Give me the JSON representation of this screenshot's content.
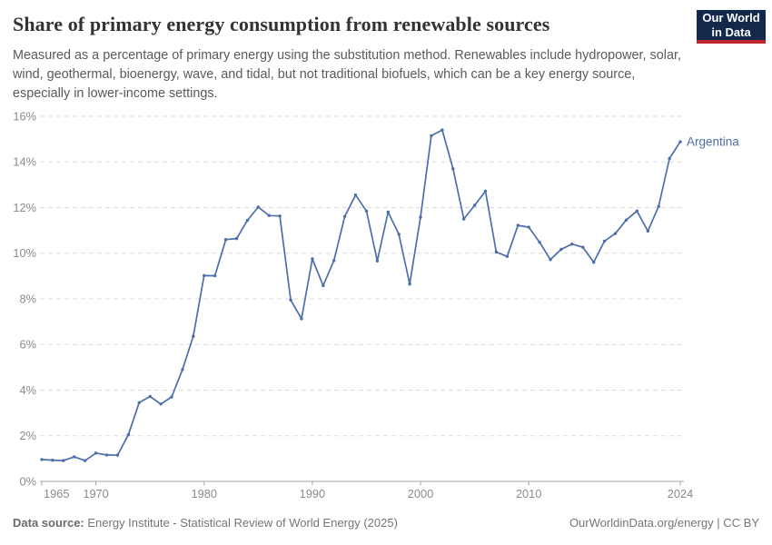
{
  "header": {
    "title": "Share of primary energy consumption from renewable sources",
    "subtitle": "Measured as a percentage of primary energy using the substitution method. Renewables include hydropower, solar, wind, geothermal, bioenergy, wave, and tidal, but not traditional biofuels, which can be a key energy source, especially in lower-income settings.",
    "logo": {
      "line1": "Our World",
      "line2": "in Data",
      "bg_color": "#12294c",
      "accent_color": "#c0282e"
    }
  },
  "chart_data": {
    "type": "line",
    "title": "Share of primary energy consumption from renewable sources",
    "xlabel": "",
    "ylabel": "",
    "xlim": [
      1965,
      2024
    ],
    "ylim": [
      0,
      16
    ],
    "grid": "horizontal-dashed",
    "legend_position": "end-of-line-label",
    "x_ticks": [
      1965,
      1970,
      1980,
      1990,
      2000,
      2010,
      2024
    ],
    "y_ticks": [
      "0%",
      "2%",
      "4%",
      "6%",
      "8%",
      "10%",
      "12%",
      "14%",
      "16%"
    ],
    "series": [
      {
        "name": "Argentina",
        "color": "#4c6ea9",
        "x": [
          1965,
          1966,
          1967,
          1968,
          1969,
          1970,
          1971,
          1972,
          1973,
          1974,
          1975,
          1976,
          1977,
          1978,
          1979,
          1980,
          1981,
          1982,
          1983,
          1984,
          1985,
          1986,
          1987,
          1988,
          1989,
          1990,
          1991,
          1992,
          1993,
          1994,
          1995,
          1996,
          1997,
          1998,
          1999,
          2000,
          2001,
          2002,
          2003,
          2004,
          2005,
          2006,
          2007,
          2008,
          2009,
          2010,
          2011,
          2012,
          2013,
          2014,
          2015,
          2016,
          2017,
          2018,
          2019,
          2020,
          2021,
          2022,
          2023,
          2024
        ],
        "values": [
          0.96,
          0.93,
          0.91,
          1.08,
          0.91,
          1.24,
          1.16,
          1.15,
          2.04,
          3.45,
          3.72,
          3.39,
          3.7,
          4.9,
          6.36,
          9.02,
          9.01,
          10.6,
          10.64,
          11.44,
          12.02,
          11.65,
          11.63,
          7.95,
          7.13,
          9.75,
          8.58,
          9.68,
          11.61,
          12.55,
          11.85,
          9.66,
          11.8,
          10.83,
          8.65,
          11.58,
          15.15,
          15.4,
          13.7,
          11.5,
          12.1,
          12.72,
          10.05,
          9.86,
          11.22,
          11.14,
          10.48,
          9.72,
          10.17,
          10.4,
          10.26,
          9.6,
          10.53,
          10.86,
          11.45,
          11.85,
          10.97,
          12.05,
          14.15,
          14.88
        ]
      }
    ]
  },
  "footer": {
    "data_source_label": "Data source:",
    "data_source": "Energy Institute - Statistical Review of World Energy (2025)",
    "attribution": "OurWorldinData.org/energy | CC BY"
  }
}
